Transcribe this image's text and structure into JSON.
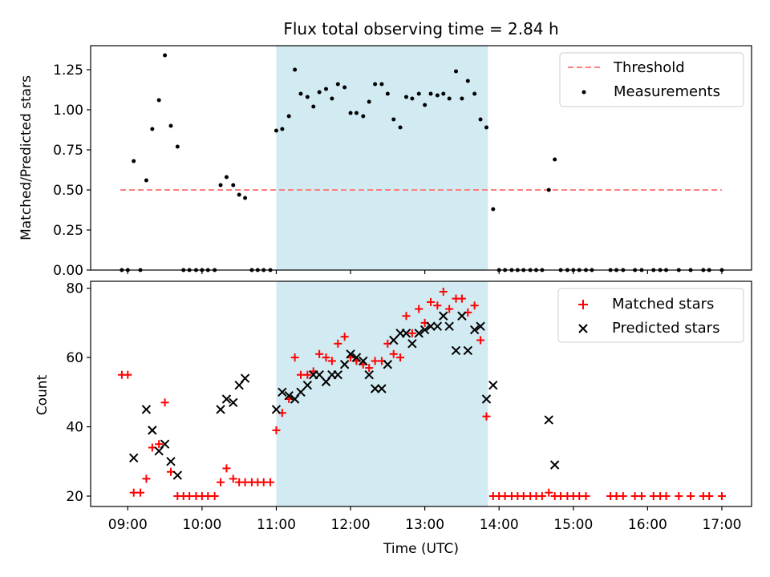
{
  "title": "Flux total observing time = 2.84 h",
  "xlabel": "Time (UTC)",
  "xticks": [
    {
      "h": 9,
      "label": "09:00"
    },
    {
      "h": 10,
      "label": "10:00"
    },
    {
      "h": 11,
      "label": "11:00"
    },
    {
      "h": 12,
      "label": "12:00"
    },
    {
      "h": 13,
      "label": "13:00"
    },
    {
      "h": 14,
      "label": "14:00"
    },
    {
      "h": 15,
      "label": "15:00"
    },
    {
      "h": 16,
      "label": "16:00"
    },
    {
      "h": 17,
      "label": "17:00"
    }
  ],
  "highlight": {
    "start": 11.0,
    "end": 13.85,
    "color": "#add8e6"
  },
  "top": {
    "ylabel": "Matched/Predicted stars",
    "yticks": [
      {
        "v": 0.0,
        "label": "0.00"
      },
      {
        "v": 0.25,
        "label": "0.25"
      },
      {
        "v": 0.5,
        "label": "0.50"
      },
      {
        "v": 0.75,
        "label": "0.75"
      },
      {
        "v": 1.0,
        "label": "1.00"
      },
      {
        "v": 1.25,
        "label": "1.25"
      }
    ],
    "legend": {
      "threshold": "Threshold",
      "measurements": "Measurements"
    }
  },
  "bottom": {
    "ylabel": "Count",
    "yticks": [
      {
        "v": 20,
        "label": "20"
      },
      {
        "v": 40,
        "label": "40"
      },
      {
        "v": 60,
        "label": "60"
      },
      {
        "v": 80,
        "label": "80"
      }
    ],
    "legend": {
      "matched": "Matched stars",
      "predicted": "Predicted stars"
    }
  },
  "colors": {
    "threshold": "#ff7f7f",
    "measurement": "#000000",
    "matched": "#ff0000",
    "predicted": "#000000"
  },
  "chart_data": [
    {
      "type": "scatter",
      "title": "Flux total observing time = 2.84 h",
      "xlabel": "",
      "ylabel": "Matched/Predicted stars",
      "xlim": [
        8.5,
        17.4
      ],
      "ylim": [
        0,
        1.4
      ],
      "threshold": {
        "value": 0.5,
        "x_range": [
          8.9,
          17.0
        ]
      },
      "series": [
        {
          "name": "Measurements",
          "points": [
            [
              8.92,
              0
            ],
            [
              9.0,
              0
            ],
            [
              9.08,
              0.68
            ],
            [
              9.17,
              0
            ],
            [
              9.25,
              0.56
            ],
            [
              9.33,
              0.88
            ],
            [
              9.42,
              1.06
            ],
            [
              9.5,
              1.34
            ],
            [
              9.58,
              0.9
            ],
            [
              9.67,
              0.77
            ],
            [
              9.75,
              0
            ],
            [
              9.83,
              0
            ],
            [
              9.92,
              0
            ],
            [
              10.0,
              0
            ],
            [
              10.08,
              0
            ],
            [
              10.17,
              0
            ],
            [
              10.25,
              0.53
            ],
            [
              10.33,
              0.58
            ],
            [
              10.42,
              0.53
            ],
            [
              10.5,
              0.47
            ],
            [
              10.58,
              0.45
            ],
            [
              10.67,
              0
            ],
            [
              10.75,
              0
            ],
            [
              10.83,
              0
            ],
            [
              10.92,
              0
            ],
            [
              11.0,
              0.87
            ],
            [
              11.08,
              0.88
            ],
            [
              11.17,
              0.96
            ],
            [
              11.25,
              1.25
            ],
            [
              11.33,
              1.1
            ],
            [
              11.42,
              1.08
            ],
            [
              11.5,
              1.02
            ],
            [
              11.58,
              1.11
            ],
            [
              11.67,
              1.13
            ],
            [
              11.75,
              1.07
            ],
            [
              11.83,
              1.16
            ],
            [
              11.92,
              1.14
            ],
            [
              12.0,
              0.98
            ],
            [
              12.08,
              0.98
            ],
            [
              12.17,
              0.96
            ],
            [
              12.25,
              1.05
            ],
            [
              12.33,
              1.16
            ],
            [
              12.42,
              1.16
            ],
            [
              12.5,
              1.1
            ],
            [
              12.58,
              0.94
            ],
            [
              12.67,
              0.89
            ],
            [
              12.75,
              1.08
            ],
            [
              12.83,
              1.07
            ],
            [
              12.92,
              1.1
            ],
            [
              13.0,
              1.03
            ],
            [
              13.08,
              1.1
            ],
            [
              13.17,
              1.09
            ],
            [
              13.25,
              1.1
            ],
            [
              13.33,
              1.07
            ],
            [
              13.42,
              1.24
            ],
            [
              13.5,
              1.07
            ],
            [
              13.58,
              1.18
            ],
            [
              13.67,
              1.1
            ],
            [
              13.75,
              0.94
            ],
            [
              13.83,
              0.89
            ],
            [
              13.92,
              0.38
            ],
            [
              14.0,
              0
            ],
            [
              14.08,
              0
            ],
            [
              14.17,
              0
            ],
            [
              14.25,
              0
            ],
            [
              14.33,
              0
            ],
            [
              14.42,
              0
            ],
            [
              14.5,
              0
            ],
            [
              14.58,
              0
            ],
            [
              14.67,
              0.5
            ],
            [
              14.75,
              0.69
            ],
            [
              14.83,
              0
            ],
            [
              14.92,
              0
            ],
            [
              15.0,
              0
            ],
            [
              15.08,
              0
            ],
            [
              15.17,
              0
            ],
            [
              15.25,
              0
            ],
            [
              15.5,
              0
            ],
            [
              15.58,
              0
            ],
            [
              15.67,
              0
            ],
            [
              15.83,
              0
            ],
            [
              15.92,
              0
            ],
            [
              16.08,
              0
            ],
            [
              16.17,
              0
            ],
            [
              16.25,
              0
            ],
            [
              16.42,
              0
            ],
            [
              16.58,
              0
            ],
            [
              16.75,
              0
            ],
            [
              16.83,
              0
            ],
            [
              17.0,
              0
            ]
          ]
        }
      ],
      "legend": [
        "Threshold",
        "Measurements"
      ]
    },
    {
      "type": "scatter",
      "title": "",
      "xlabel": "Time (UTC)",
      "ylabel": "Count",
      "xlim": [
        8.5,
        17.4
      ],
      "ylim": [
        17,
        82
      ],
      "series": [
        {
          "name": "Matched stars",
          "marker": "+",
          "points": [
            [
              8.92,
              55
            ],
            [
              9.0,
              55
            ],
            [
              9.08,
              21
            ],
            [
              9.17,
              21
            ],
            [
              9.25,
              25
            ],
            [
              9.33,
              34
            ],
            [
              9.42,
              35
            ],
            [
              9.5,
              47
            ],
            [
              9.58,
              27
            ],
            [
              9.67,
              20
            ],
            [
              9.75,
              20
            ],
            [
              9.83,
              20
            ],
            [
              9.92,
              20
            ],
            [
              10.0,
              20
            ],
            [
              10.08,
              20
            ],
            [
              10.17,
              20
            ],
            [
              10.25,
              24
            ],
            [
              10.33,
              28
            ],
            [
              10.42,
              25
            ],
            [
              10.5,
              24
            ],
            [
              10.58,
              24
            ],
            [
              10.67,
              24
            ],
            [
              10.75,
              24
            ],
            [
              10.83,
              24
            ],
            [
              10.92,
              24
            ],
            [
              11.0,
              39
            ],
            [
              11.08,
              44
            ],
            [
              11.17,
              48
            ],
            [
              11.25,
              60
            ],
            [
              11.33,
              55
            ],
            [
              11.42,
              55
            ],
            [
              11.5,
              56
            ],
            [
              11.58,
              61
            ],
            [
              11.67,
              60
            ],
            [
              11.75,
              59
            ],
            [
              11.83,
              64
            ],
            [
              11.92,
              66
            ],
            [
              12.0,
              60
            ],
            [
              12.08,
              59
            ],
            [
              12.17,
              58
            ],
            [
              12.25,
              57
            ],
            [
              12.33,
              59
            ],
            [
              12.42,
              59
            ],
            [
              12.5,
              64
            ],
            [
              12.58,
              61
            ],
            [
              12.67,
              60
            ],
            [
              12.75,
              72
            ],
            [
              12.83,
              67
            ],
            [
              12.92,
              74
            ],
            [
              13.0,
              70
            ],
            [
              13.08,
              76
            ],
            [
              13.17,
              75
            ],
            [
              13.25,
              79
            ],
            [
              13.33,
              74
            ],
            [
              13.42,
              77
            ],
            [
              13.5,
              77
            ],
            [
              13.58,
              73
            ],
            [
              13.67,
              75
            ],
            [
              13.75,
              65
            ],
            [
              13.83,
              43
            ],
            [
              13.92,
              20
            ],
            [
              14.0,
              20
            ],
            [
              14.08,
              20
            ],
            [
              14.17,
              20
            ],
            [
              14.25,
              20
            ],
            [
              14.33,
              20
            ],
            [
              14.42,
              20
            ],
            [
              14.5,
              20
            ],
            [
              14.58,
              20
            ],
            [
              14.67,
              21
            ],
            [
              14.75,
              20
            ],
            [
              14.83,
              20
            ],
            [
              14.92,
              20
            ],
            [
              15.0,
              20
            ],
            [
              15.08,
              20
            ],
            [
              15.17,
              20
            ],
            [
              15.5,
              20
            ],
            [
              15.58,
              20
            ],
            [
              15.67,
              20
            ],
            [
              15.83,
              20
            ],
            [
              15.92,
              20
            ],
            [
              16.08,
              20
            ],
            [
              16.17,
              20
            ],
            [
              16.25,
              20
            ],
            [
              16.42,
              20
            ],
            [
              16.58,
              20
            ],
            [
              16.75,
              20
            ],
            [
              16.83,
              20
            ],
            [
              17.0,
              20
            ]
          ]
        },
        {
          "name": "Predicted stars",
          "marker": "x",
          "points": [
            [
              9.08,
              31
            ],
            [
              9.25,
              45
            ],
            [
              9.33,
              39
            ],
            [
              9.42,
              33
            ],
            [
              9.5,
              35
            ],
            [
              9.58,
              30
            ],
            [
              9.67,
              26
            ],
            [
              10.25,
              45
            ],
            [
              10.33,
              48
            ],
            [
              10.42,
              47
            ],
            [
              10.5,
              52
            ],
            [
              10.58,
              54
            ],
            [
              11.0,
              45
            ],
            [
              11.08,
              50
            ],
            [
              11.17,
              49
            ],
            [
              11.25,
              48
            ],
            [
              11.33,
              50
            ],
            [
              11.42,
              52
            ],
            [
              11.5,
              55
            ],
            [
              11.58,
              55
            ],
            [
              11.67,
              53
            ],
            [
              11.75,
              55
            ],
            [
              11.83,
              55
            ],
            [
              11.92,
              58
            ],
            [
              12.0,
              61
            ],
            [
              12.08,
              60
            ],
            [
              12.17,
              59
            ],
            [
              12.25,
              55
            ],
            [
              12.33,
              51
            ],
            [
              12.42,
              51
            ],
            [
              12.5,
              58
            ],
            [
              12.58,
              65
            ],
            [
              12.67,
              67
            ],
            [
              12.75,
              67
            ],
            [
              12.83,
              64
            ],
            [
              12.92,
              67
            ],
            [
              13.0,
              68
            ],
            [
              13.08,
              69
            ],
            [
              13.17,
              69
            ],
            [
              13.25,
              72
            ],
            [
              13.33,
              69
            ],
            [
              13.42,
              62
            ],
            [
              13.58,
              62
            ],
            [
              13.5,
              72
            ],
            [
              13.67,
              68
            ],
            [
              13.75,
              69
            ],
            [
              13.83,
              48
            ],
            [
              13.92,
              52
            ],
            [
              14.67,
              42
            ],
            [
              14.75,
              29
            ]
          ]
        }
      ],
      "legend": [
        "Matched stars",
        "Predicted stars"
      ]
    }
  ]
}
